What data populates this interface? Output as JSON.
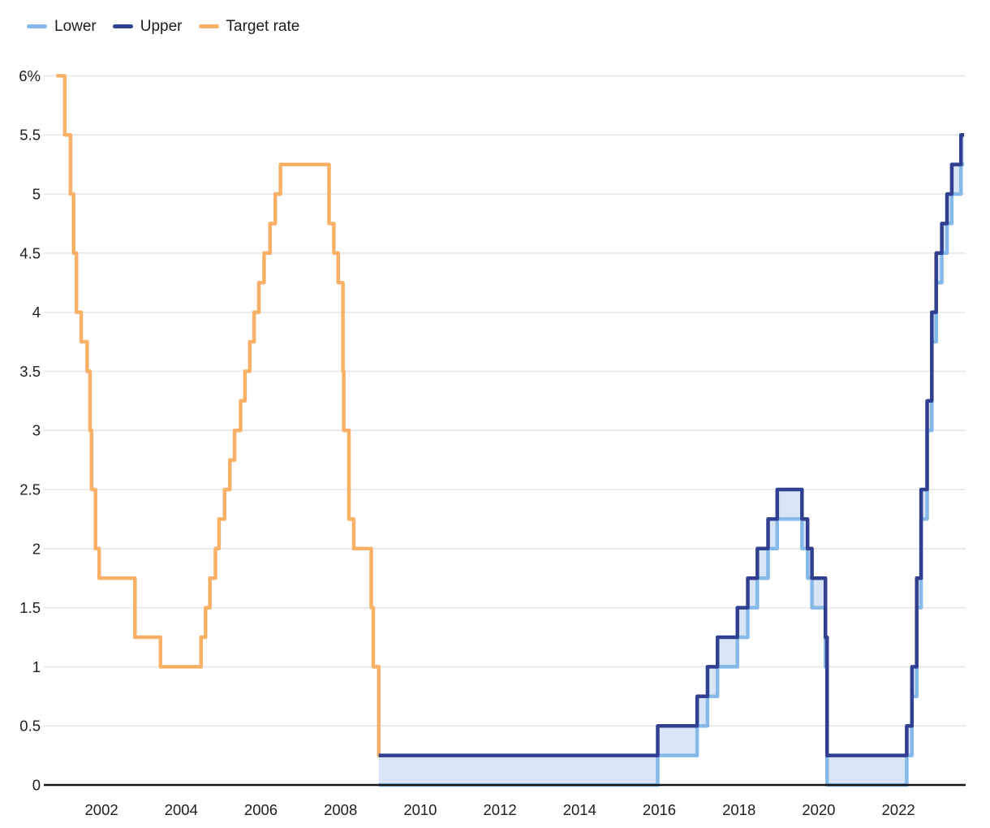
{
  "legend": {
    "items": [
      {
        "label": "Lower",
        "color": "#84B9E9"
      },
      {
        "label": "Upper",
        "color": "#303F90"
      },
      {
        "label": "Target rate",
        "color": "#F9B067"
      }
    ]
  },
  "chart_data": {
    "type": "line",
    "step_interpolation": "step-after",
    "title": "",
    "xlabel": "",
    "ylabel": "",
    "x_axis": {
      "range": [
        2001.0,
        2023.65
      ],
      "tick_values": [
        2002,
        2004,
        2006,
        2008,
        2010,
        2012,
        2014,
        2016,
        2018,
        2020,
        2022
      ],
      "tick_labels": [
        "2002",
        "2004",
        "2006",
        "2008",
        "2010",
        "2012",
        "2014",
        "2016",
        "2018",
        "2020",
        "2022"
      ]
    },
    "y_axis": {
      "range": [
        0,
        6
      ],
      "tick_values": [
        6,
        5.5,
        5,
        4.5,
        4,
        3.5,
        3,
        2.5,
        2,
        1.5,
        1,
        0.5,
        0
      ],
      "tick_labels": [
        "6%",
        "5.5",
        "5",
        "4.5",
        "4",
        "3.5",
        "3",
        "2.5",
        "2",
        "1.5",
        "1",
        "0.5",
        "0"
      ],
      "grid": true,
      "gridline_color": "#E9E9E9",
      "axis_line_color": "#151515"
    },
    "band_fill_color": "#D8E5F7",
    "series": [
      {
        "name": "Target rate",
        "color": "#F9B067",
        "end_x": null,
        "points": [
          [
            2000.9,
            6.0
          ],
          [
            2001.08,
            5.5
          ],
          [
            2001.22,
            5.0
          ],
          [
            2001.3,
            4.5
          ],
          [
            2001.37,
            4.0
          ],
          [
            2001.49,
            3.75
          ],
          [
            2001.64,
            3.5
          ],
          [
            2001.71,
            3.0
          ],
          [
            2001.75,
            2.5
          ],
          [
            2001.85,
            2.0
          ],
          [
            2001.94,
            1.75
          ],
          [
            2002.84,
            1.25
          ],
          [
            2003.48,
            1.0
          ],
          [
            2004.5,
            1.25
          ],
          [
            2004.61,
            1.5
          ],
          [
            2004.72,
            1.75
          ],
          [
            2004.86,
            2.0
          ],
          [
            2004.95,
            2.25
          ],
          [
            2005.09,
            2.5
          ],
          [
            2005.22,
            2.75
          ],
          [
            2005.34,
            3.0
          ],
          [
            2005.49,
            3.25
          ],
          [
            2005.6,
            3.5
          ],
          [
            2005.72,
            3.75
          ],
          [
            2005.83,
            4.0
          ],
          [
            2005.95,
            4.25
          ],
          [
            2006.08,
            4.5
          ],
          [
            2006.23,
            4.75
          ],
          [
            2006.36,
            5.0
          ],
          [
            2006.49,
            5.25
          ],
          [
            2007.71,
            4.75
          ],
          [
            2007.83,
            4.5
          ],
          [
            2007.94,
            4.25
          ],
          [
            2008.06,
            3.5
          ],
          [
            2008.08,
            3.0
          ],
          [
            2008.21,
            2.25
          ],
          [
            2008.33,
            2.0
          ],
          [
            2008.77,
            1.5
          ],
          [
            2008.82,
            1.0
          ],
          [
            2008.96,
            0.25
          ]
        ]
      },
      {
        "name": "Upper",
        "color": "#303F90",
        "end_x": 2023.65,
        "points": [
          [
            2008.96,
            0.25
          ],
          [
            2015.96,
            0.5
          ],
          [
            2016.95,
            0.75
          ],
          [
            2017.21,
            1.0
          ],
          [
            2017.46,
            1.25
          ],
          [
            2017.96,
            1.5
          ],
          [
            2018.22,
            1.75
          ],
          [
            2018.46,
            2.0
          ],
          [
            2018.73,
            2.25
          ],
          [
            2018.96,
            2.5
          ],
          [
            2019.58,
            2.25
          ],
          [
            2019.72,
            2.0
          ],
          [
            2019.83,
            1.75
          ],
          [
            2020.17,
            1.25
          ],
          [
            2020.21,
            0.25
          ],
          [
            2022.21,
            0.5
          ],
          [
            2022.34,
            1.0
          ],
          [
            2022.46,
            1.75
          ],
          [
            2022.57,
            2.5
          ],
          [
            2022.72,
            3.25
          ],
          [
            2022.84,
            4.0
          ],
          [
            2022.95,
            4.5
          ],
          [
            2023.09,
            4.75
          ],
          [
            2023.22,
            5.0
          ],
          [
            2023.34,
            5.25
          ],
          [
            2023.57,
            5.5
          ]
        ]
      },
      {
        "name": "Lower",
        "color": "#84B9E9",
        "end_x": 2023.65,
        "points": [
          [
            2008.96,
            0.0
          ],
          [
            2015.96,
            0.25
          ],
          [
            2016.95,
            0.5
          ],
          [
            2017.21,
            0.75
          ],
          [
            2017.46,
            1.0
          ],
          [
            2017.96,
            1.25
          ],
          [
            2018.22,
            1.5
          ],
          [
            2018.46,
            1.75
          ],
          [
            2018.73,
            2.0
          ],
          [
            2018.96,
            2.25
          ],
          [
            2019.58,
            2.0
          ],
          [
            2019.72,
            1.75
          ],
          [
            2019.83,
            1.5
          ],
          [
            2020.17,
            1.0
          ],
          [
            2020.21,
            0.0
          ],
          [
            2022.21,
            0.25
          ],
          [
            2022.34,
            0.75
          ],
          [
            2022.46,
            1.5
          ],
          [
            2022.57,
            2.25
          ],
          [
            2022.72,
            3.0
          ],
          [
            2022.84,
            3.75
          ],
          [
            2022.95,
            4.25
          ],
          [
            2023.09,
            4.5
          ],
          [
            2023.22,
            4.75
          ],
          [
            2023.34,
            5.0
          ],
          [
            2023.57,
            5.25
          ]
        ]
      }
    ],
    "band_between": [
      "Upper",
      "Lower"
    ],
    "band_x_range": [
      2008.96,
      2023.65
    ]
  },
  "layout_numbers": {
    "note_visible_only": true
  }
}
